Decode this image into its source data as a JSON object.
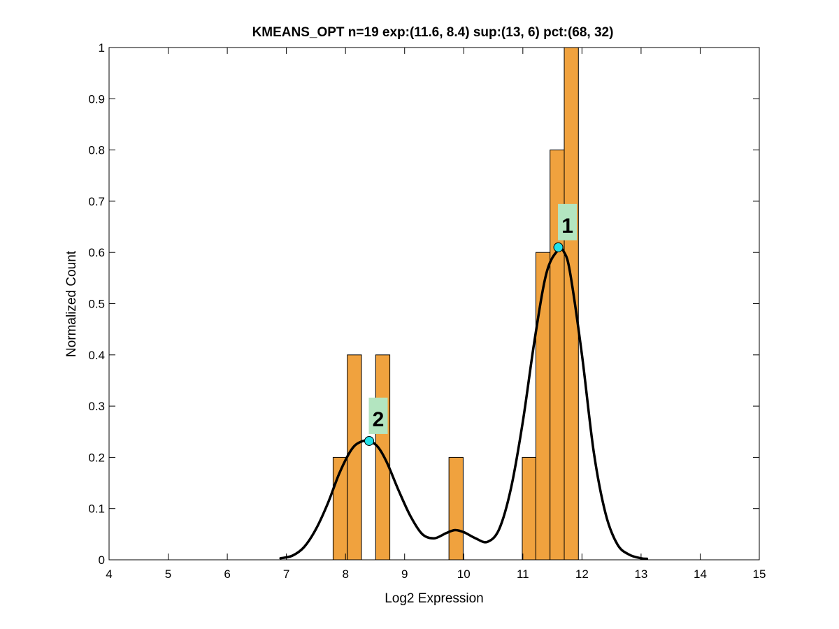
{
  "chart_data": {
    "type": "bar",
    "title": "KMEANS_OPT n=19 exp:(11.6, 8.4) sup:(13, 6) pct:(68, 32)",
    "xlabel": "Log2 Expression",
    "ylabel": "Normalized Count",
    "xlim": [
      4,
      15
    ],
    "ylim": [
      0,
      1
    ],
    "xticks": [
      4,
      5,
      6,
      7,
      8,
      9,
      10,
      11,
      12,
      13,
      14,
      15
    ],
    "yticks": [
      0,
      0.1,
      0.2,
      0.3,
      0.4,
      0.5,
      0.6,
      0.7,
      0.8,
      0.9,
      1
    ],
    "grid": false,
    "legend": "none",
    "bar_color": "#f0a23e",
    "bars": [
      {
        "x_start": 7.79,
        "x_end": 8.03,
        "value": 0.2
      },
      {
        "x_start": 8.03,
        "x_end": 8.27,
        "value": 0.4
      },
      {
        "x_start": 8.51,
        "x_end": 8.75,
        "value": 0.4
      },
      {
        "x_start": 9.75,
        "x_end": 9.99,
        "value": 0.2
      },
      {
        "x_start": 10.99,
        "x_end": 11.22,
        "value": 0.2
      },
      {
        "x_start": 11.22,
        "x_end": 11.46,
        "value": 0.6
      },
      {
        "x_start": 11.46,
        "x_end": 11.7,
        "value": 0.8
      },
      {
        "x_start": 11.7,
        "x_end": 11.94,
        "value": 1.0
      }
    ],
    "density_curve": {
      "color": "#000000",
      "x": [
        6.9,
        7.1,
        7.3,
        7.5,
        7.7,
        7.9,
        8.1,
        8.25,
        8.4,
        8.55,
        8.7,
        8.9,
        9.1,
        9.3,
        9.5,
        9.7,
        9.85,
        10.0,
        10.2,
        10.4,
        10.6,
        10.8,
        11.0,
        11.2,
        11.4,
        11.6,
        11.7,
        11.8,
        12.0,
        12.2,
        12.4,
        12.6,
        12.8,
        13.0,
        13.1
      ],
      "y": [
        0.003,
        0.008,
        0.025,
        0.06,
        0.11,
        0.17,
        0.215,
        0.23,
        0.232,
        0.22,
        0.19,
        0.135,
        0.085,
        0.05,
        0.042,
        0.052,
        0.058,
        0.054,
        0.042,
        0.035,
        0.06,
        0.14,
        0.27,
        0.43,
        0.56,
        0.605,
        0.6,
        0.56,
        0.4,
        0.21,
        0.09,
        0.03,
        0.01,
        0.003,
        0.002
      ]
    },
    "peaks": [
      {
        "label": "1",
        "x": 11.6,
        "y": 0.61
      },
      {
        "label": "2",
        "x": 8.4,
        "y": 0.232
      }
    ],
    "peak_marker_color": "#22e0e8",
    "peak_label_bg": "#b3e5c0"
  }
}
